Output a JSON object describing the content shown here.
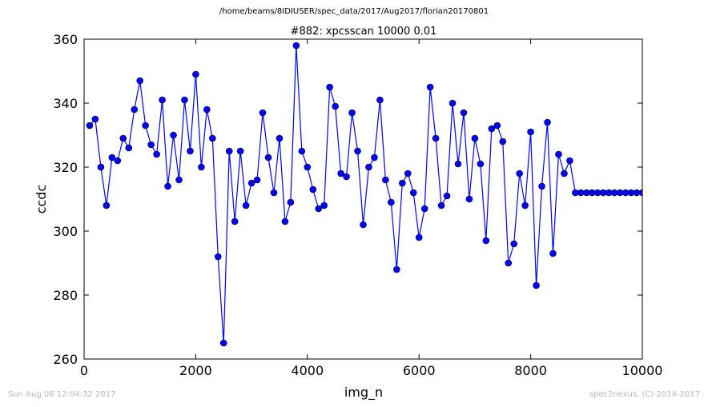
{
  "page": {
    "suptitle": "/home/beams/8IDIUSER/spec_data/2017/Aug2017/florian20170801",
    "footer_left": "Sun Aug 06 12:04:32 2017",
    "footer_right": "spec2nexus, (C) 2014-2017"
  },
  "chart_data": {
    "type": "line",
    "title": "#882: xpcsscan 10000 0.01",
    "xlabel": "img_n",
    "ylabel": "ccdc",
    "xlim": [
      0,
      10000
    ],
    "ylim": [
      260,
      360
    ],
    "xticks": [
      0,
      2000,
      4000,
      6000,
      8000,
      10000
    ],
    "yticks": [
      260,
      280,
      300,
      320,
      340,
      360
    ],
    "grid": false,
    "legend": "none",
    "series": [
      {
        "color": "#0000ff",
        "marker": "circle",
        "x": [
          100,
          200,
          300,
          400,
          500,
          600,
          700,
          800,
          900,
          1000,
          1100,
          1200,
          1300,
          1400,
          1500,
          1600,
          1700,
          1800,
          1900,
          2000,
          2100,
          2200,
          2300,
          2400,
          2500,
          2600,
          2700,
          2800,
          2900,
          3000,
          3100,
          3200,
          3300,
          3400,
          3500,
          3600,
          3700,
          3800,
          3900,
          4000,
          4100,
          4200,
          4300,
          4400,
          4500,
          4600,
          4700,
          4800,
          4900,
          5000,
          5100,
          5200,
          5300,
          5400,
          5500,
          5600,
          5700,
          5800,
          5900,
          6000,
          6100,
          6200,
          6300,
          6400,
          6500,
          6600,
          6700,
          6800,
          6900,
          7000,
          7100,
          7200,
          7300,
          7400,
          7500,
          7600,
          7700,
          7800,
          7900,
          8000,
          8100,
          8200,
          8300,
          8400,
          8500,
          8600,
          8700,
          8800,
          8900,
          9000,
          9100,
          9200,
          9300,
          9400,
          9500,
          9600,
          9700,
          9800,
          9900,
          10000
        ],
        "y": [
          333,
          335,
          320,
          308,
          323,
          322,
          329,
          326,
          338,
          347,
          333,
          327,
          324,
          341,
          314,
          330,
          316,
          341,
          325,
          349,
          320,
          338,
          329,
          292,
          265,
          325,
          303,
          325,
          308,
          315,
          316,
          337,
          323,
          312,
          329,
          303,
          309,
          358,
          325,
          320,
          313,
          307,
          308,
          345,
          339,
          318,
          317,
          337,
          325,
          302,
          320,
          323,
          341,
          316,
          309,
          288,
          315,
          318,
          312,
          298,
          307,
          345,
          329,
          308,
          311,
          340,
          321,
          337,
          310,
          329,
          321,
          297,
          332,
          333,
          328,
          290,
          296,
          318,
          308,
          331,
          283,
          314,
          334,
          293,
          324,
          318,
          322,
          312,
          312,
          312,
          312,
          312,
          312,
          312,
          312,
          312,
          312,
          312,
          312,
          312
        ]
      }
    ]
  }
}
